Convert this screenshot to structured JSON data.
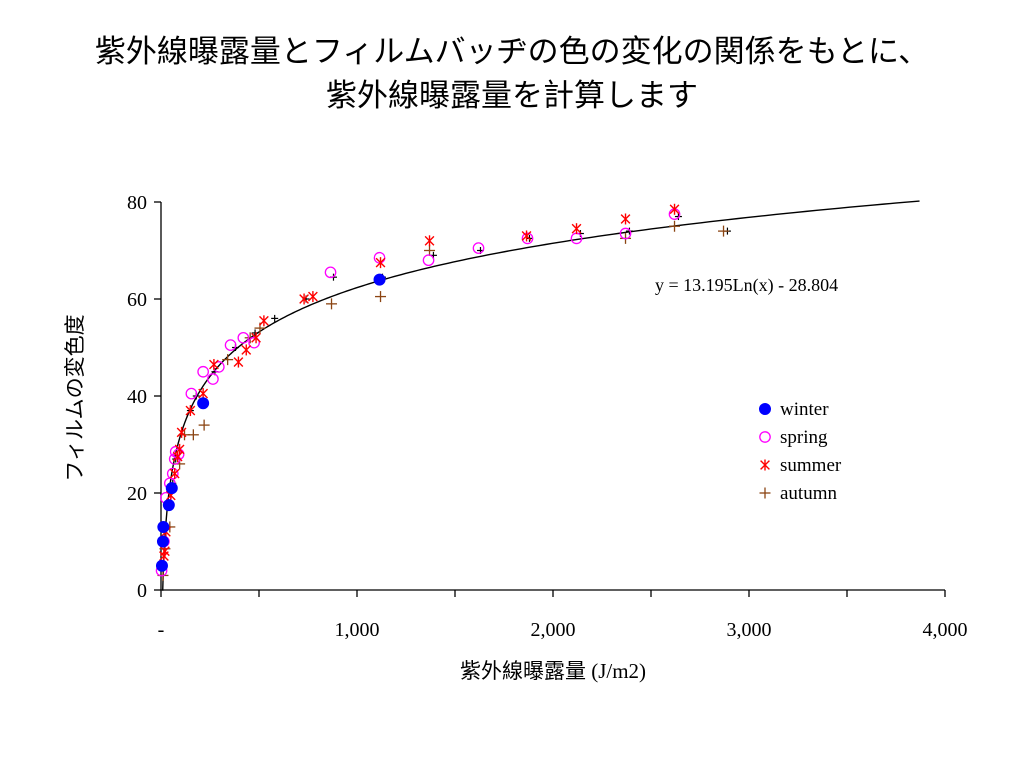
{
  "slide": {
    "title_line1": "紫外線曝露量とフィルムバッヂの色の変化の関係をもとに、",
    "title_line2": "紫外線曝露量を計算します"
  },
  "chart_data": {
    "type": "scatter",
    "xlabel": "紫外線曝露量 (J/m2)",
    "ylabel": "フィルムの変色度",
    "xlim": [
      0,
      4000
    ],
    "ylim": [
      0,
      80
    ],
    "x_ticks": [
      0,
      1000,
      2000,
      3000,
      4000
    ],
    "x_tick_labels": [
      "-",
      "1,000",
      "2,000",
      "3,000",
      "4,000"
    ],
    "y_ticks": [
      0,
      20,
      40,
      60,
      80
    ],
    "y_tick_labels": [
      "0",
      "20",
      "40",
      "60",
      "80"
    ],
    "grid": false,
    "legend_position": "right",
    "annotation": "y = 13.195Ln(x) - 28.804",
    "trendline": {
      "type": "logarithmic",
      "a": 13.195,
      "b": -28.804,
      "color": "#000000"
    },
    "series": [
      {
        "name": "winter",
        "marker": "filled-circle",
        "color": "#0000ff",
        "points": [
          [
            5,
            5
          ],
          [
            10,
            10
          ],
          [
            12,
            13
          ],
          [
            40,
            17.5
          ],
          [
            55,
            21
          ],
          [
            215,
            38.5
          ],
          [
            1115,
            64
          ]
        ]
      },
      {
        "name": "spring",
        "marker": "open-circle",
        "color": "#ff00ff",
        "points": [
          [
            3,
            4
          ],
          [
            15,
            10
          ],
          [
            25,
            19
          ],
          [
            45,
            22
          ],
          [
            60,
            24
          ],
          [
            70,
            27
          ],
          [
            75,
            28.5
          ],
          [
            90,
            28
          ],
          [
            155,
            40.5
          ],
          [
            215,
            45
          ],
          [
            265,
            43.5
          ],
          [
            295,
            46
          ],
          [
            355,
            50.5
          ],
          [
            420,
            52
          ],
          [
            475,
            51
          ],
          [
            865,
            65.5
          ],
          [
            1115,
            68.5
          ],
          [
            1365,
            68
          ],
          [
            1620,
            70.5
          ],
          [
            1870,
            72.5
          ],
          [
            2120,
            72.5
          ],
          [
            2370,
            73.5
          ],
          [
            2620,
            77.5
          ]
        ]
      },
      {
        "name": "summer",
        "marker": "asterisk",
        "color": "#ff0000",
        "points": [
          [
            15,
            7
          ],
          [
            20,
            8
          ],
          [
            25,
            12
          ],
          [
            50,
            19.5
          ],
          [
            70,
            24
          ],
          [
            85,
            27.5
          ],
          [
            95,
            29
          ],
          [
            105,
            32.5
          ],
          [
            150,
            37
          ],
          [
            215,
            40.5
          ],
          [
            270,
            46.5
          ],
          [
            395,
            47
          ],
          [
            435,
            49.5
          ],
          [
            485,
            52
          ],
          [
            525,
            55.5
          ],
          [
            730,
            60
          ],
          [
            775,
            60.5
          ],
          [
            1120,
            67.5
          ],
          [
            1370,
            72
          ],
          [
            1865,
            73
          ],
          [
            2120,
            74.5
          ],
          [
            2370,
            76.5
          ],
          [
            2620,
            78.5
          ]
        ]
      },
      {
        "name": "autumn",
        "marker": "plus",
        "color": "#8b4513",
        "points": [
          [
            10,
            3
          ],
          [
            20,
            8.5
          ],
          [
            45,
            13
          ],
          [
            95,
            26
          ],
          [
            120,
            32
          ],
          [
            165,
            32
          ],
          [
            220,
            34
          ],
          [
            340,
            47.5
          ],
          [
            455,
            52
          ],
          [
            505,
            54
          ],
          [
            870,
            59
          ],
          [
            1120,
            60.5
          ],
          [
            1370,
            70
          ],
          [
            2370,
            72.5
          ],
          [
            2620,
            75
          ],
          [
            2870,
            74
          ]
        ]
      },
      {
        "name": "",
        "marker": "small-plus",
        "color": "#000000",
        "points": [
          [
            25,
            10
          ],
          [
            40,
            17
          ],
          [
            60,
            22
          ],
          [
            75,
            27
          ],
          [
            150,
            37
          ],
          [
            180,
            40
          ],
          [
            275,
            45
          ],
          [
            380,
            50
          ],
          [
            480,
            53
          ],
          [
            580,
            56
          ],
          [
            740,
            60
          ],
          [
            880,
            64.5
          ],
          [
            1130,
            64.5
          ],
          [
            1390,
            69
          ],
          [
            1630,
            70
          ],
          [
            1880,
            72.5
          ],
          [
            2140,
            73.5
          ],
          [
            2390,
            74
          ],
          [
            2640,
            77
          ],
          [
            2890,
            74
          ]
        ]
      }
    ]
  }
}
